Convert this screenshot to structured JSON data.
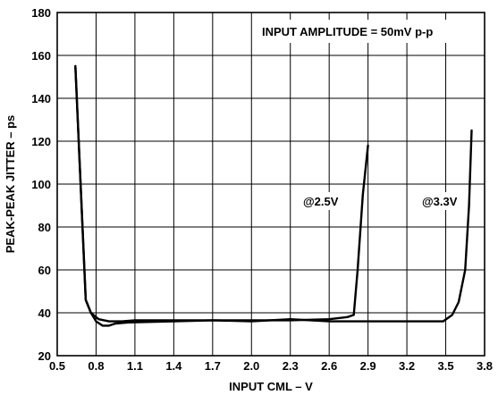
{
  "chart_data": {
    "type": "line",
    "xlabel": "INPUT CML – V",
    "ylabel": "PEAK-PEAK JITTER – ps",
    "xlim": [
      0.5,
      3.8
    ],
    "ylim": [
      20,
      180
    ],
    "xticks": [
      "0.5",
      "0.8",
      "1.1",
      "1.4",
      "1.7",
      "2.0",
      "2.3",
      "2.6",
      "2.9",
      "3.2",
      "3.5",
      "3.8"
    ],
    "yticks": [
      "20",
      "40",
      "60",
      "80",
      "100",
      "120",
      "140",
      "160",
      "180"
    ],
    "grid": true,
    "annotations": {
      "amplitude": "INPUT AMPLITUDE = 50mV p-p",
      "label_25": "@2.5V",
      "label_33": "@3.3V"
    },
    "series": [
      {
        "label": "@2.5V",
        "points": [
          [
            0.64,
            155
          ],
          [
            0.72,
            46
          ],
          [
            0.76,
            40
          ],
          [
            0.82,
            37
          ],
          [
            0.9,
            36
          ],
          [
            1.0,
            36
          ],
          [
            1.1,
            36.5
          ],
          [
            1.4,
            36.5
          ],
          [
            1.7,
            36.5
          ],
          [
            2.0,
            36.5
          ],
          [
            2.3,
            36.5
          ],
          [
            2.6,
            37
          ],
          [
            2.74,
            38
          ],
          [
            2.79,
            39
          ],
          [
            2.82,
            60
          ],
          [
            2.86,
            95
          ],
          [
            2.9,
            118
          ]
        ]
      },
      {
        "label": "@3.3V",
        "points": [
          [
            0.64,
            155
          ],
          [
            0.72,
            46
          ],
          [
            0.76,
            40
          ],
          [
            0.8,
            36
          ],
          [
            0.85,
            34
          ],
          [
            0.9,
            34
          ],
          [
            0.95,
            35
          ],
          [
            1.05,
            35.5
          ],
          [
            1.4,
            36
          ],
          [
            1.7,
            36.5
          ],
          [
            2.0,
            36
          ],
          [
            2.3,
            37
          ],
          [
            2.6,
            36
          ],
          [
            3.0,
            36
          ],
          [
            3.3,
            36
          ],
          [
            3.48,
            36
          ],
          [
            3.55,
            39
          ],
          [
            3.6,
            45
          ],
          [
            3.65,
            60
          ],
          [
            3.68,
            90
          ],
          [
            3.7,
            125
          ]
        ]
      }
    ]
  }
}
